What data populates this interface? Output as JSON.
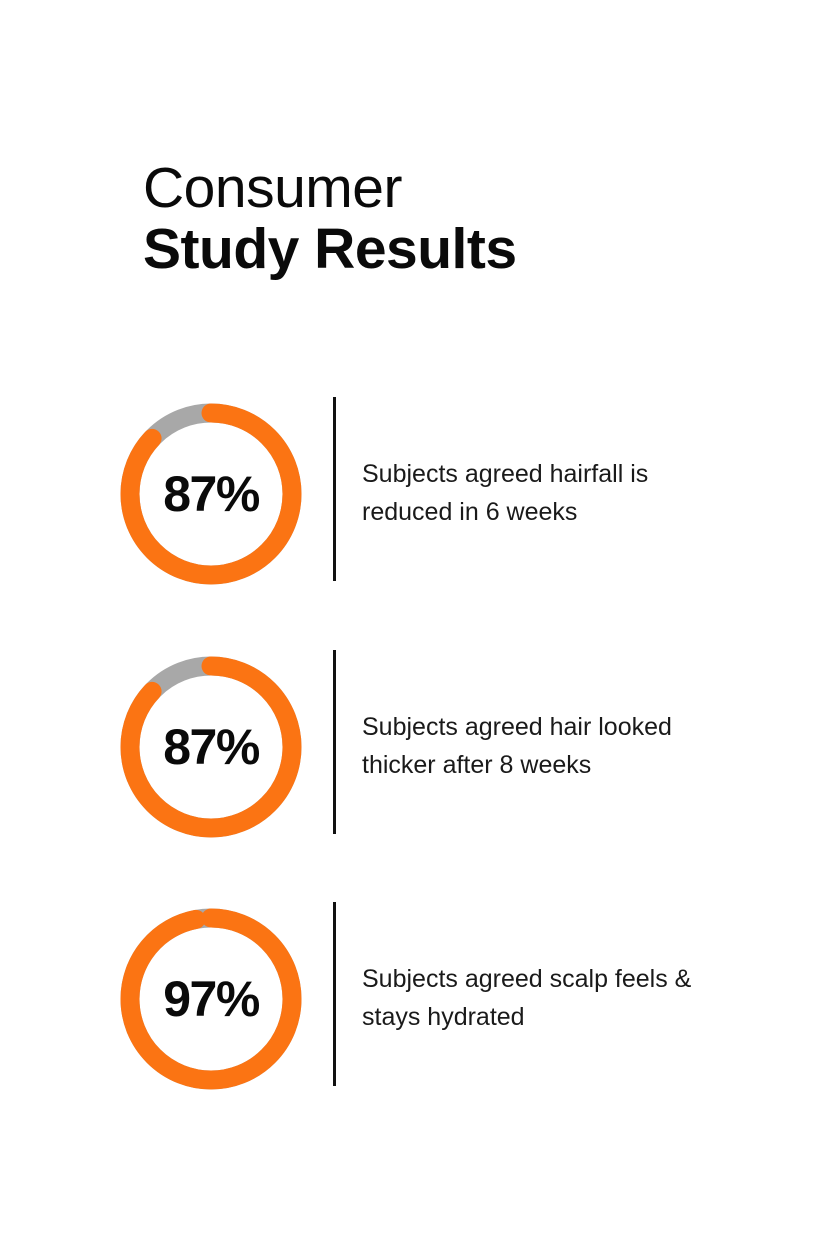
{
  "header": {
    "line1": "Consumer",
    "line2": "Study Results"
  },
  "colors": {
    "accent": "#fb7413",
    "track": "#a8a8a8",
    "text": "#0a0a0a"
  },
  "chart_data": {
    "type": "pie",
    "title": "Consumer Study Results",
    "unit": "%",
    "items": [
      {
        "value": 87,
        "label": "87%",
        "description_line1": "Subjects agreed hairfall is",
        "description_line2": "reduced in 6 weeks"
      },
      {
        "value": 87,
        "label": "87%",
        "description_line1": "Subjects agreed hair looked",
        "description_line2": "thicker after 8 weeks"
      },
      {
        "value": 97,
        "label": "97%",
        "description_line1": "Subjects agreed scalp feels &",
        "description_line2": "stays hydrated"
      }
    ]
  }
}
